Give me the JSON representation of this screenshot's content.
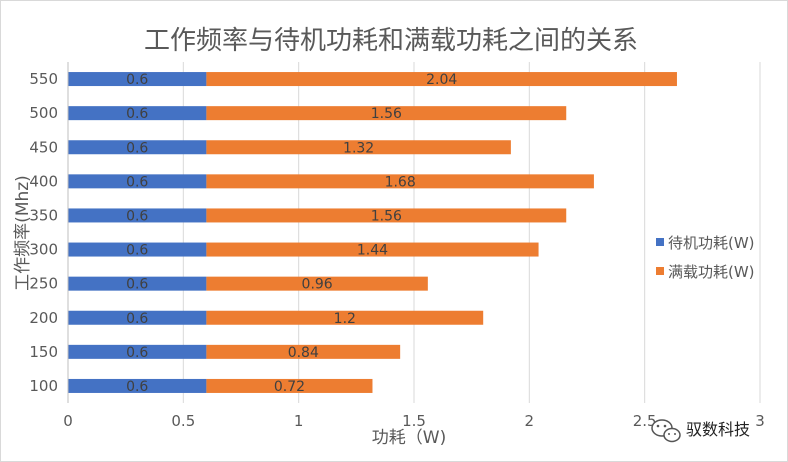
{
  "chart_data": {
    "type": "bar",
    "orientation": "horizontal",
    "stacked": true,
    "title": "工作频率与待机功耗和满载功耗之间的关系",
    "xlabel": "功耗（W)",
    "ylabel": "工作频率(Mhz)",
    "xlim": [
      0,
      3
    ],
    "x_ticks": [
      "0",
      "0.5",
      "1",
      "1.5",
      "2",
      "2.5",
      "3"
    ],
    "categories": [
      "100",
      "150",
      "200",
      "250",
      "300",
      "350",
      "400",
      "450",
      "500",
      "550"
    ],
    "series": [
      {
        "name": "待机功耗(W)",
        "color": "#4472c4",
        "values": [
          0.6,
          0.6,
          0.6,
          0.6,
          0.6,
          0.6,
          0.6,
          0.6,
          0.6,
          0.6
        ],
        "labels": [
          "0.6",
          "0.6",
          "0.6",
          "0.6",
          "0.6",
          "0.6",
          "0.6",
          "0.6",
          "0.6",
          "0.6"
        ]
      },
      {
        "name": "满载功耗(W)",
        "color": "#ed7d31",
        "values": [
          0.72,
          0.84,
          1.2,
          0.96,
          1.44,
          1.56,
          1.68,
          1.32,
          1.56,
          2.04
        ],
        "labels": [
          "0.72",
          "0.84",
          "1.2",
          "0.96",
          "1.44",
          "1.56",
          "1.68",
          "1.32",
          "1.56",
          "2.04"
        ]
      }
    ],
    "grid": "vertical",
    "legend_position": "right"
  },
  "watermark": {
    "text": "驭数科技",
    "icon": "wechat-icon"
  }
}
